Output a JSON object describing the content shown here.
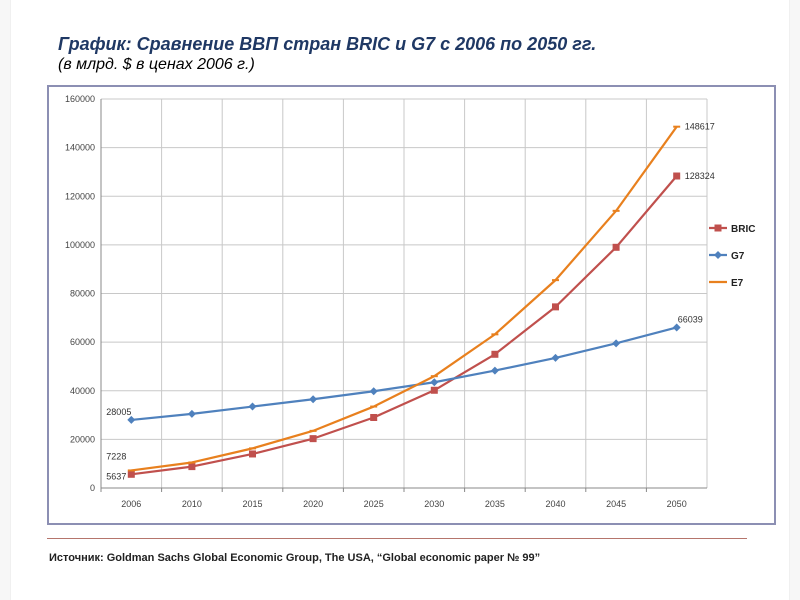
{
  "slide": {
    "title": "График: Сравнение ВВП стран BRIC и G7 с 2006 по 2050 гг.",
    "subtitle": "(в млрд. $ в ценах 2006 г.)",
    "source": "Источник: Goldman Sachs Global Economic Group, The USA, “Global economic paper № 99”"
  },
  "colors": {
    "BRIC": "#c0504d",
    "G7": "#4f81bd",
    "E7": "#e8801e",
    "grid": "#c8c8c8",
    "frame": "#8c8fb3"
  },
  "chart_data": {
    "type": "line",
    "title": "",
    "xlabel": "",
    "ylabel": "",
    "categories": [
      "2006",
      "2010",
      "2015",
      "2020",
      "2025",
      "2030",
      "2035",
      "2040",
      "2045",
      "2050"
    ],
    "ylim": [
      0,
      160000
    ],
    "yticks": [
      "0",
      "20000",
      "40000",
      "60000",
      "80000",
      "100000",
      "120000",
      "140000",
      "160000"
    ],
    "grid": true,
    "legend_position": "right",
    "series": [
      {
        "name": "BRIC",
        "marker": "square",
        "values": [
          5637,
          8800,
          14000,
          20300,
          29000,
          40200,
          55000,
          74500,
          99000,
          128324
        ]
      },
      {
        "name": "G7",
        "marker": "diamond",
        "values": [
          28005,
          30500,
          33500,
          36500,
          39800,
          43500,
          48300,
          53500,
          59500,
          66039
        ]
      },
      {
        "name": "E7",
        "marker": "none",
        "values": [
          7228,
          10500,
          16300,
          23500,
          33500,
          46000,
          63200,
          85500,
          114000,
          148617
        ]
      }
    ],
    "data_labels": [
      {
        "series": "G7",
        "category": "2006",
        "text": "28005"
      },
      {
        "series": "E7",
        "category": "2006",
        "text": "7228"
      },
      {
        "series": "BRIC",
        "category": "2006",
        "text": "5637"
      },
      {
        "series": "E7",
        "category": "2050",
        "text": "148617"
      },
      {
        "series": "BRIC",
        "category": "2050",
        "text": "128324"
      },
      {
        "series": "G7",
        "category": "2050",
        "text": "66039"
      }
    ]
  }
}
